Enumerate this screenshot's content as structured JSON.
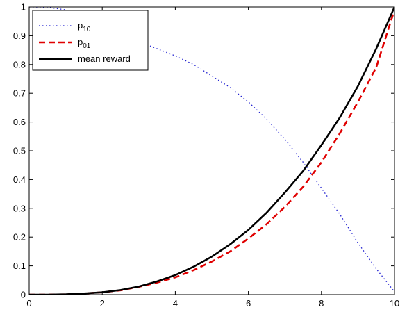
{
  "chart_data": {
    "type": "line",
    "title": "",
    "xlabel": "",
    "ylabel": "",
    "xlim": [
      0,
      10
    ],
    "ylim": [
      0,
      1
    ],
    "x_ticks": [
      0,
      2,
      4,
      6,
      8,
      10
    ],
    "y_ticks": [
      0,
      0.1,
      0.2,
      0.3,
      0.4,
      0.5,
      0.6,
      0.7,
      0.8,
      0.9,
      1
    ],
    "grid": false,
    "legend_position": "top-left",
    "x": [
      0,
      0.5,
      1,
      1.5,
      2,
      2.5,
      3,
      3.5,
      4,
      4.5,
      5,
      5.5,
      6,
      6.5,
      7,
      7.5,
      8,
      8.5,
      9,
      9.5,
      10
    ],
    "series": [
      {
        "name": "p",
        "name_sub": "10",
        "color": "#2020d0",
        "style": "dotted",
        "values": [
          1.0,
          0.999,
          0.99,
          0.965,
          0.935,
          0.905,
          0.88,
          0.855,
          0.83,
          0.8,
          0.76,
          0.72,
          0.67,
          0.61,
          0.54,
          0.46,
          0.37,
          0.28,
          0.18,
          0.09,
          0.01
        ]
      },
      {
        "name": "p",
        "name_sub": "01",
        "color": "#e00000",
        "style": "dashed",
        "values": [
          0.0,
          0.0,
          0.001,
          0.004,
          0.008,
          0.015,
          0.027,
          0.042,
          0.06,
          0.085,
          0.115,
          0.15,
          0.195,
          0.245,
          0.305,
          0.375,
          0.46,
          0.56,
          0.67,
          0.79,
          0.99
        ]
      },
      {
        "name": "mean reward",
        "name_sub": "",
        "color": "#000000",
        "style": "solid",
        "values": [
          0.0,
          0.0,
          0.001,
          0.004,
          0.008,
          0.016,
          0.028,
          0.046,
          0.068,
          0.097,
          0.132,
          0.175,
          0.225,
          0.285,
          0.355,
          0.43,
          0.52,
          0.615,
          0.725,
          0.855,
          1.0
        ]
      }
    ]
  }
}
